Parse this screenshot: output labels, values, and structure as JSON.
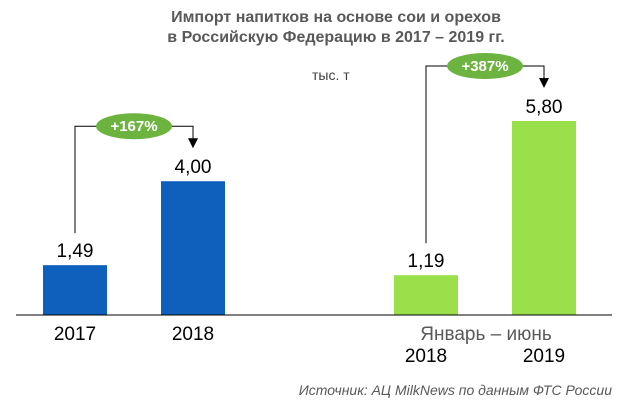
{
  "chart_data": {
    "type": "bar",
    "title_line1": "Импорт напитков на основе сои и орехов",
    "title_line2": "в Российскую Федерацию в 2017 – 2019 гг.",
    "unit": "тыс. т",
    "groups": [
      {
        "bars": [
          {
            "category": "2017",
            "value": 1.49,
            "label": "1,49",
            "color": "#0f5fbd"
          },
          {
            "category": "2018",
            "value": 4.0,
            "label": "4,00",
            "color": "#0f5fbd"
          }
        ],
        "change_label": "+167%"
      },
      {
        "period_label": "Январь – июнь",
        "bars": [
          {
            "category": "2018",
            "value": 1.19,
            "label": "1,19",
            "color": "#99e04a"
          },
          {
            "category": "2019",
            "value": 5.8,
            "label": "5,80",
            "color": "#99e04a"
          }
        ],
        "change_label": "+387%"
      }
    ],
    "badge_color": "#6cb33f",
    "ylim": [
      0,
      6.5
    ],
    "grid": false,
    "legend": "none"
  },
  "source": "Источник: АЦ MilkNews по данным ФТС России"
}
